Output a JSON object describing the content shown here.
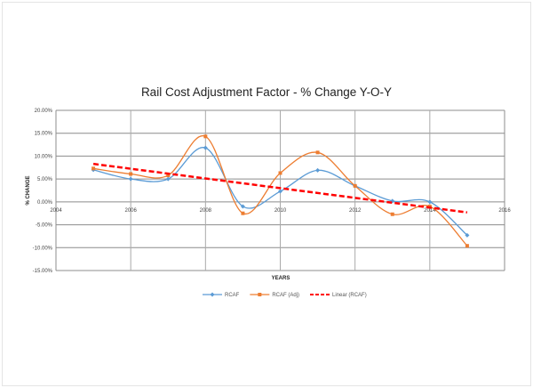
{
  "chart_data": {
    "type": "line",
    "title": "Rail Cost Adjustment Factor - % Change Y-O-Y",
    "xlabel": "YEARS",
    "ylabel": "% CHANGE",
    "xlim": [
      2004,
      2016
    ],
    "ylim": [
      -15,
      20
    ],
    "x_ticks": [
      "2004",
      "2006",
      "2008",
      "2010",
      "2012",
      "2014",
      "2016"
    ],
    "y_ticks": [
      "20.00%",
      "15.00%",
      "10.00%",
      "5.00%",
      "0.00%",
      "-5.00%",
      "-10.00%",
      "-15.00%"
    ],
    "grid": true,
    "legend_position": "bottom",
    "x": [
      2005,
      2006,
      2007,
      2008,
      2009,
      2010,
      2011,
      2012,
      2013,
      2014,
      2015
    ],
    "series": [
      {
        "name": "RCAF",
        "color": "#5B9BD5",
        "marker": "diamond",
        "smooth": true,
        "values": [
          7.0,
          5.0,
          5.0,
          11.8,
          -1.0,
          2.3,
          6.9,
          3.5,
          0.2,
          0.0,
          -7.3
        ]
      },
      {
        "name": "RCAF (Adj)",
        "color": "#ED7D31",
        "marker": "square",
        "smooth": true,
        "values": [
          7.3,
          6.1,
          5.8,
          14.3,
          -2.5,
          6.3,
          10.8,
          3.5,
          -2.7,
          -1.0,
          -9.6
        ]
      },
      {
        "name": "Linear (RCAF)",
        "color": "#FF0000",
        "dashed": true,
        "trendline": true,
        "x": [
          2005,
          2015
        ],
        "values": [
          8.3,
          -2.3
        ]
      }
    ]
  }
}
